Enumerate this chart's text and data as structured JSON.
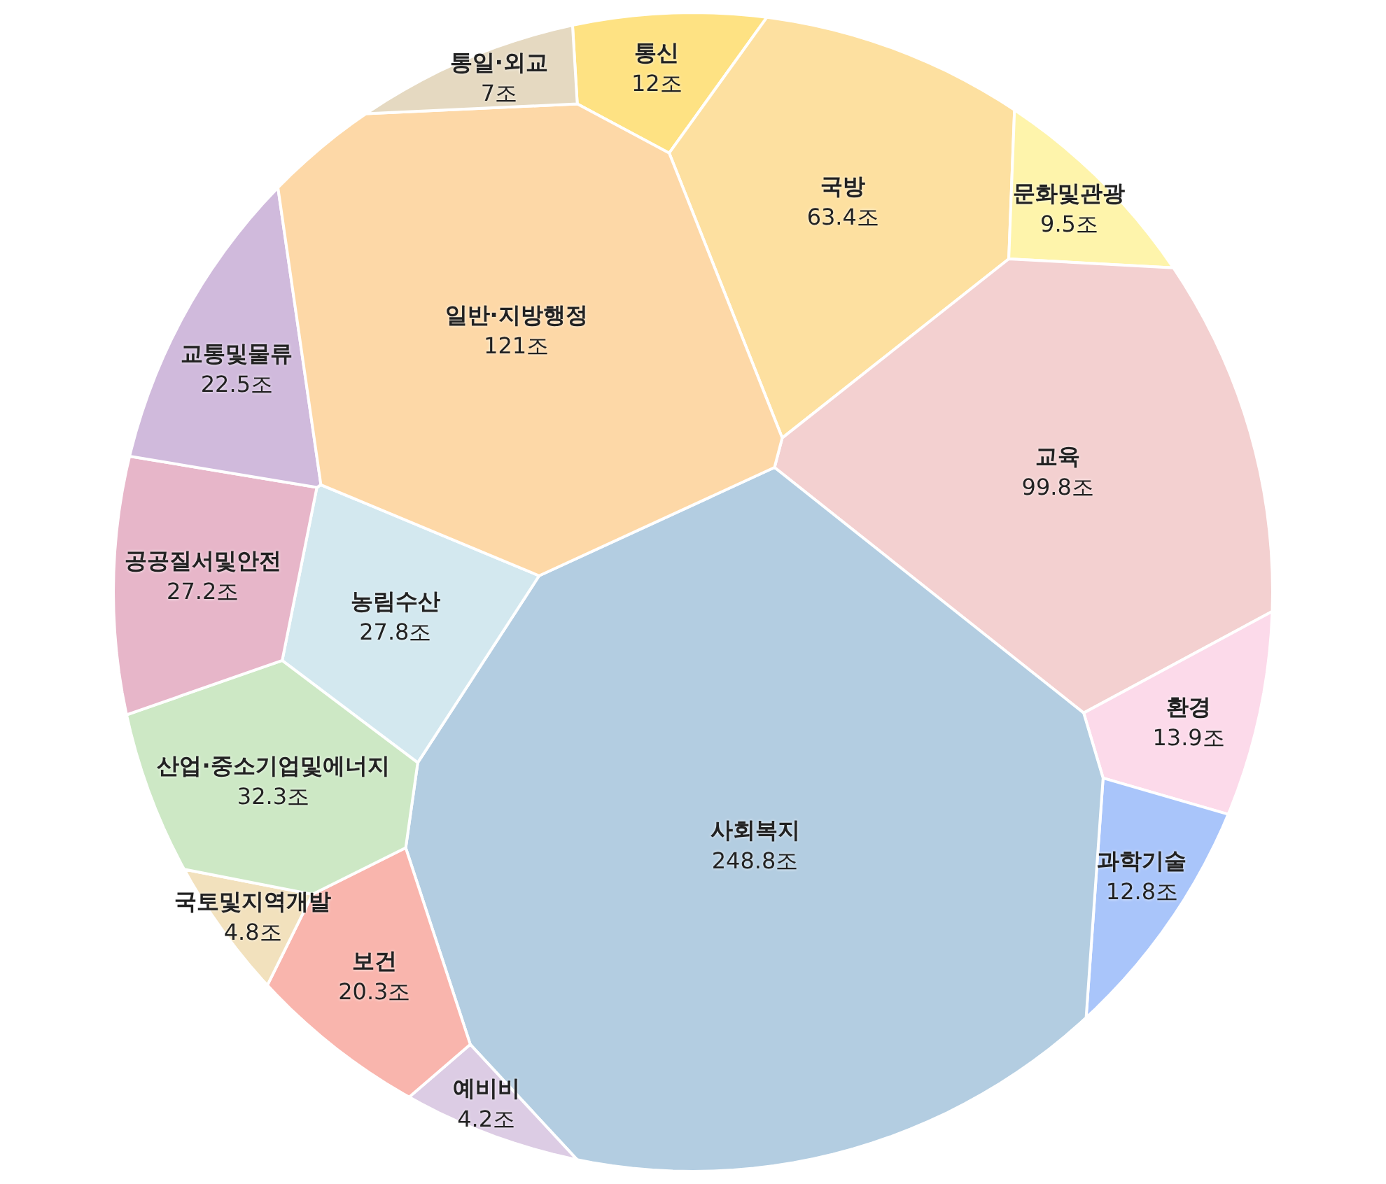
{
  "chart_data": {
    "type": "other",
    "categories": [
      "통신",
      "국방",
      "문화및관광",
      "교육",
      "환경",
      "과학기술",
      "사회복지",
      "예비비",
      "보건",
      "농림수산",
      "국토및지역개발",
      "산업·중소기업및에너지",
      "공공질서및안전",
      "교통및물류",
      "일반·지방행정",
      "통일·외교"
    ],
    "values": [
      12,
      63.4,
      9.5,
      99.8,
      13.9,
      12.8,
      248.8,
      4.2,
      20.3,
      27.8,
      4.8,
      32.3,
      27.2,
      22.5,
      121,
      7
    ],
    "value_labels": [
      "12조",
      "63.4조",
      "9.5조",
      "99.8조",
      "13.9조",
      "12.8조",
      "248.8조",
      "4.2조",
      "20.3조",
      "27.8조",
      "4.8조",
      "32.3조",
      "27.2조",
      "22.5조",
      "121조",
      "7조"
    ],
    "colors": [
      "#fee283",
      "#fde0a0",
      "#fef4ab",
      "#f3d0d0",
      "#fcdaea",
      "#a9c5fa",
      "#b3cde1",
      "#dccce4",
      "#f9b5ad",
      "#d3e8ef",
      "#f2e1bd",
      "#cde8c5",
      "#e7b6c9",
      "#d0badc",
      "#fdd8a7",
      "#e5d9c1"
    ]
  }
}
